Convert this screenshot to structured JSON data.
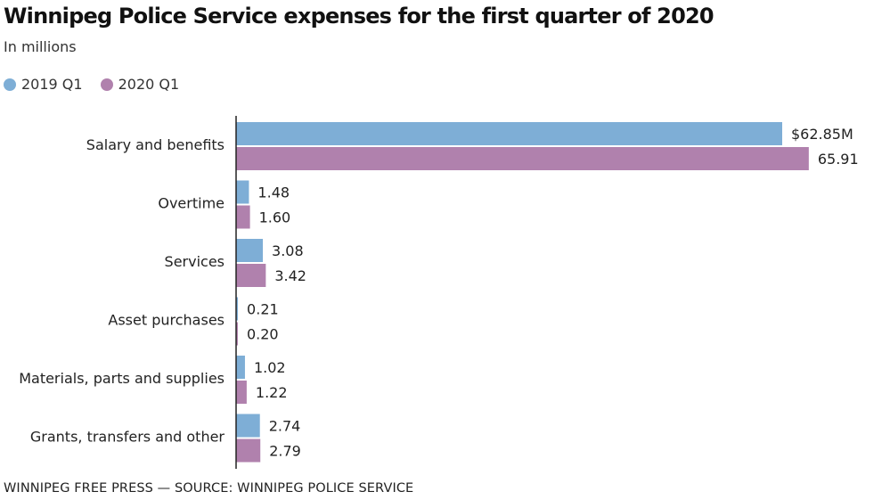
{
  "header": {
    "title": "Winnipeg Police Service expenses for the first quarter of 2020",
    "subtitle": "In millions"
  },
  "legend": [
    {
      "label": "2019 Q1",
      "color": "#7eaed6"
    },
    {
      "label": "2020 Q1",
      "color": "#b081ad"
    }
  ],
  "footer": "WINNIPEG FREE PRESS — SOURCE: WINNIPEG POLICE SERVICE",
  "chart_data": {
    "type": "bar",
    "orientation": "horizontal",
    "title": "Winnipeg Police Service expenses for the first quarter of 2020",
    "subtitle": "In millions",
    "xlabel": "",
    "ylabel": "",
    "unit": "millions of dollars",
    "xlim": [
      0,
      70
    ],
    "grid": false,
    "legend_position": "top-left",
    "categories": [
      "Salary and benefits",
      "Overtime",
      "Services",
      "Asset purchases",
      "Materials, parts and supplies",
      "Grants, transfers and other"
    ],
    "series": [
      {
        "name": "2019 Q1",
        "color": "#7eaed6",
        "values": [
          62.85,
          1.48,
          3.08,
          0.21,
          1.02,
          2.74
        ],
        "labels": [
          "$62.85M",
          "1.48",
          "3.08",
          "0.21",
          "1.02",
          "2.74"
        ]
      },
      {
        "name": "2020 Q1",
        "color": "#b081ad",
        "values": [
          65.91,
          1.6,
          3.42,
          0.2,
          1.22,
          2.79
        ],
        "labels": [
          "65.91",
          "1.60",
          "3.42",
          "0.20",
          "1.22",
          "2.79"
        ]
      }
    ]
  }
}
